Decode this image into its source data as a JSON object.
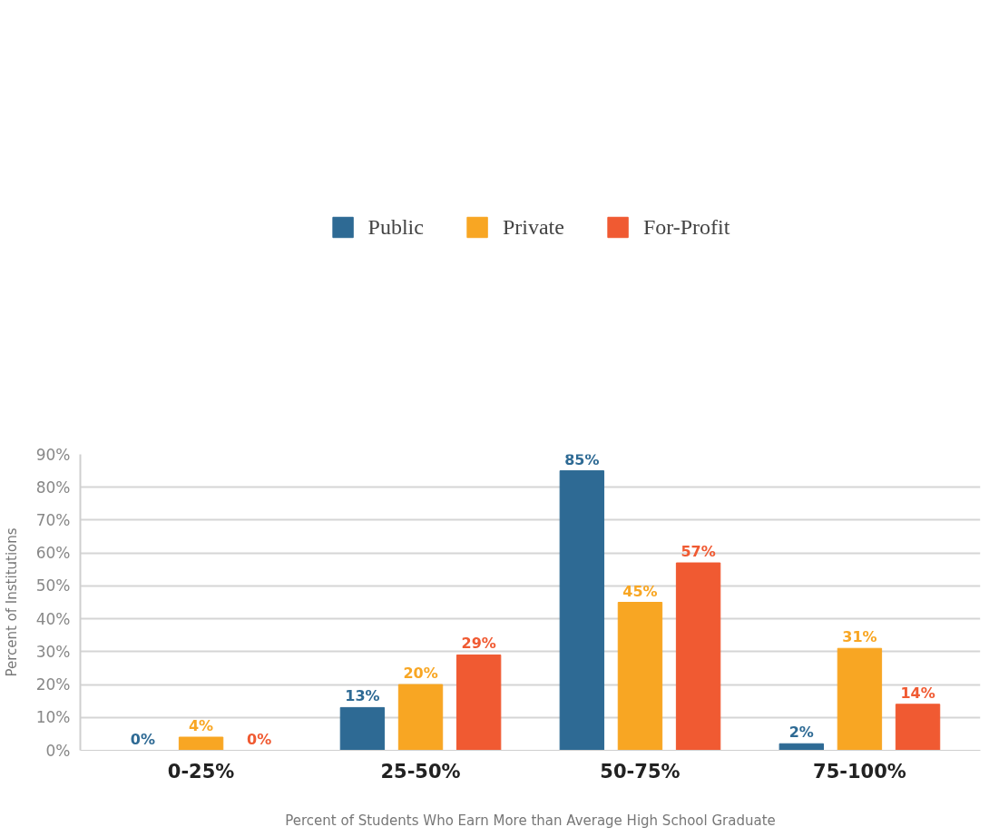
{
  "chart_data": {
    "type": "bar",
    "xlabel": "Percent of Students Who Earn More than Average High School Graduate",
    "ylabel": "Percent of Institutions",
    "categories": [
      "0-25%",
      "25-50%",
      "50-75%",
      "75-100%"
    ],
    "series": [
      {
        "name": "Public",
        "color": "#2e6a94",
        "values": [
          0,
          13,
          85,
          2
        ],
        "value_labels": [
          "0%",
          "13%",
          "85%",
          "2%"
        ]
      },
      {
        "name": "Private",
        "color": "#f8a623",
        "values": [
          4,
          20,
          45,
          31
        ],
        "value_labels": [
          "4%",
          "20%",
          "45%",
          "31%"
        ]
      },
      {
        "name": "For-Profit",
        "color": "#f05a32",
        "values": [
          0,
          29,
          57,
          14
        ],
        "value_labels": [
          "0%",
          "29%",
          "57%",
          "14%"
        ]
      }
    ],
    "ylim": [
      0,
      90
    ],
    "yticks": [
      {
        "value": 0,
        "label": "0%"
      },
      {
        "value": 10,
        "label": "10%"
      },
      {
        "value": 20,
        "label": "20%"
      },
      {
        "value": 30,
        "label": "30%"
      },
      {
        "value": 40,
        "label": "40%"
      },
      {
        "value": 50,
        "label": "50%"
      },
      {
        "value": 60,
        "label": "60%"
      },
      {
        "value": 70,
        "label": "70%"
      },
      {
        "value": 80,
        "label": "80%"
      },
      {
        "value": 90,
        "label": "90%"
      }
    ],
    "grid": "y",
    "legend": "top"
  }
}
